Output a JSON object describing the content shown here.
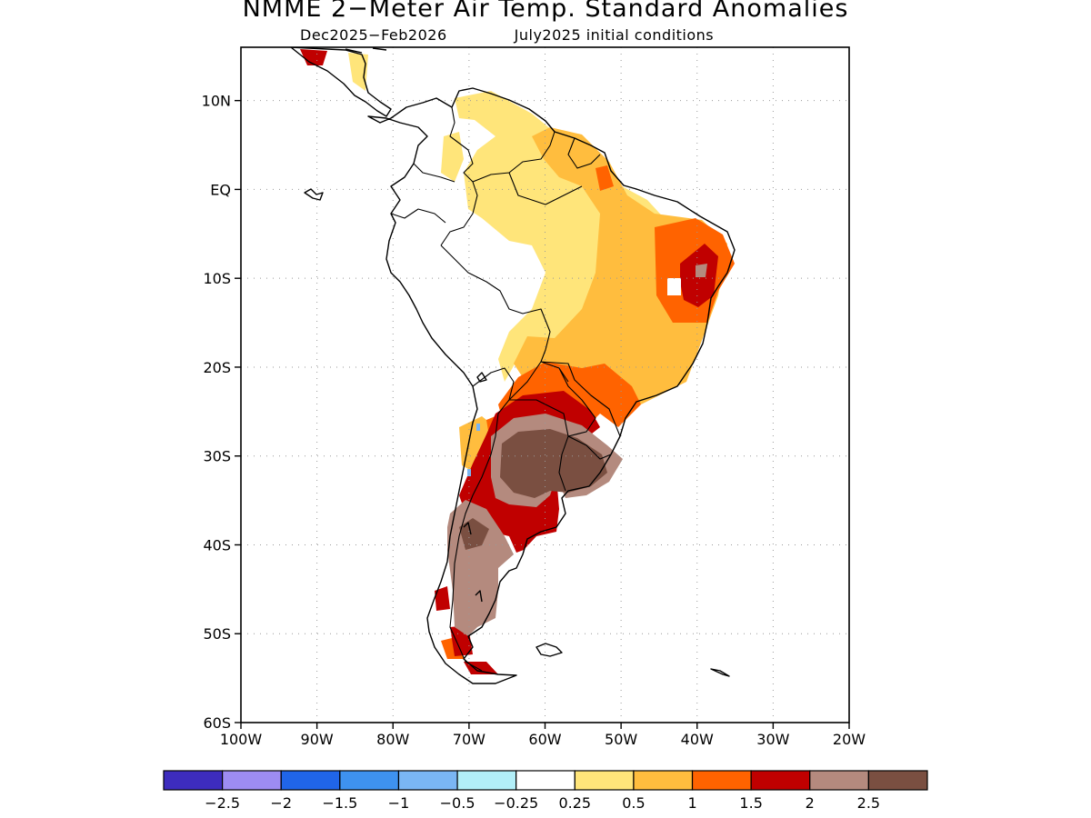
{
  "title": "NMME 2−Meter Air Temp. Standard Anomalies",
  "subtitle_left": "Dec2025−Feb2026",
  "subtitle_right": "July2025 initial conditions",
  "axes": {
    "lat_labels": [
      "10N",
      "EQ",
      "10S",
      "20S",
      "30S",
      "40S",
      "50S",
      "60S"
    ],
    "lon_labels": [
      "100W",
      "90W",
      "80W",
      "70W",
      "60W",
      "50W",
      "40W",
      "30W",
      "20W"
    ],
    "lat_values": [
      10,
      0,
      -10,
      -20,
      -30,
      -40,
      -50,
      -60
    ],
    "lon_values": [
      -100,
      -90,
      -80,
      -70,
      -60,
      -50,
      -40,
      -30,
      -20
    ],
    "lat_range": [
      -60,
      16
    ],
    "lon_range": [
      -100,
      -20
    ],
    "grid": "dotted"
  },
  "colorbar": {
    "colors": [
      "#3d2cbe",
      "#9d8cf2",
      "#2065e8",
      "#3e92ef",
      "#7ab6f4",
      "#b2eff8",
      "#ffffff",
      "#ffe57a",
      "#ffbd3e",
      "#ff6300",
      "#c00000",
      "#b48a7e",
      "#7a4f41"
    ],
    "labels": [
      "−2.5",
      "−2",
      "−1.5",
      "−1",
      "−0.5",
      "−0.25",
      "0.25",
      "0.5",
      "1",
      "1.5",
      "2",
      "2.5"
    ]
  }
}
